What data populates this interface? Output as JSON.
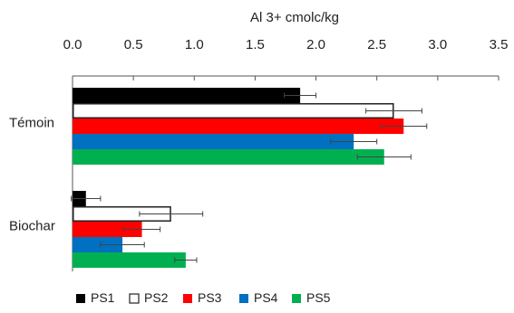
{
  "chart_data": {
    "type": "bar",
    "orientation": "horizontal",
    "title": "",
    "xlabel": "Al 3+ cmolc/kg",
    "ylabel": "",
    "xaxis_position": "top",
    "xlim": [
      0,
      3.5
    ],
    "xticks": [
      0.0,
      0.5,
      1.0,
      1.5,
      2.0,
      2.5,
      3.0,
      3.5
    ],
    "xtick_labels": [
      "0.0",
      "0.5",
      "1.0",
      "1.5",
      "2.0",
      "2.5",
      "3.0",
      "3.5"
    ],
    "categories": [
      "Témoin",
      "Biochar"
    ],
    "series": [
      {
        "name": "PS1",
        "color": "#000000",
        "hollow": false,
        "values": [
          1.87,
          0.11
        ],
        "errors": [
          0.13,
          0.12
        ]
      },
      {
        "name": "PS2",
        "color": "#ffffff",
        "hollow": true,
        "values": [
          2.64,
          0.81
        ],
        "errors": [
          0.23,
          0.26
        ]
      },
      {
        "name": "PS3",
        "color": "#ff0000",
        "hollow": false,
        "values": [
          2.72,
          0.57
        ],
        "errors": [
          0.19,
          0.15
        ]
      },
      {
        "name": "PS4",
        "color": "#0070c0",
        "hollow": false,
        "values": [
          2.31,
          0.41
        ],
        "errors": [
          0.19,
          0.18
        ]
      },
      {
        "name": "PS5",
        "color": "#00b050",
        "hollow": false,
        "values": [
          2.56,
          0.93
        ],
        "errors": [
          0.22,
          0.09
        ]
      }
    ],
    "error_bars": true,
    "grid": false,
    "legend_position": "bottom"
  }
}
